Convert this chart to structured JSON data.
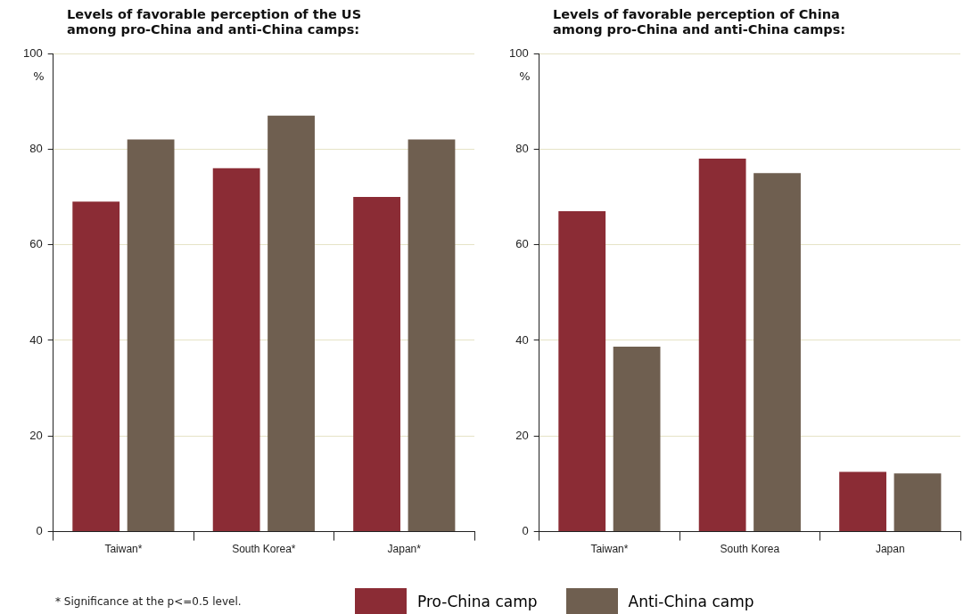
{
  "chart_data": [
    {
      "type": "bar",
      "title": "Levels of favorable perception of the US among pro-China and anti-China camps:",
      "ylabel": "%",
      "categories": [
        "Taiwan*",
        "South Korea*",
        "Japan*"
      ],
      "series": [
        {
          "name": "Pro-China camp",
          "color": "#8b2c35",
          "values": [
            69,
            76,
            70
          ]
        },
        {
          "name": "Anti-China camp",
          "color": "#6f5f50",
          "values": [
            82,
            87,
            82
          ]
        }
      ],
      "ylim": [
        0,
        100
      ],
      "yticks": [
        0,
        20,
        40,
        60,
        80,
        100
      ],
      "grid": "y",
      "legend": "bottom",
      "annotations": [
        "* Significance at the p<=0.5 level."
      ]
    },
    {
      "type": "bar",
      "title": "Levels of favorable perception of China among pro-China and anti-China camps:",
      "ylabel": "%",
      "categories": [
        "Taiwan*",
        "South Korea",
        "Japan"
      ],
      "series": [
        {
          "name": "Pro-China camp",
          "color": "#8b2c35",
          "values": [
            67,
            78,
            12.5
          ]
        },
        {
          "name": "Anti-China camp",
          "color": "#6f5f50",
          "values": [
            38.7,
            75,
            12.2
          ]
        }
      ],
      "ylim": [
        0,
        100
      ],
      "yticks": [
        0,
        20,
        40,
        60,
        80,
        100
      ],
      "grid": "y",
      "legend": "bottom"
    }
  ]
}
